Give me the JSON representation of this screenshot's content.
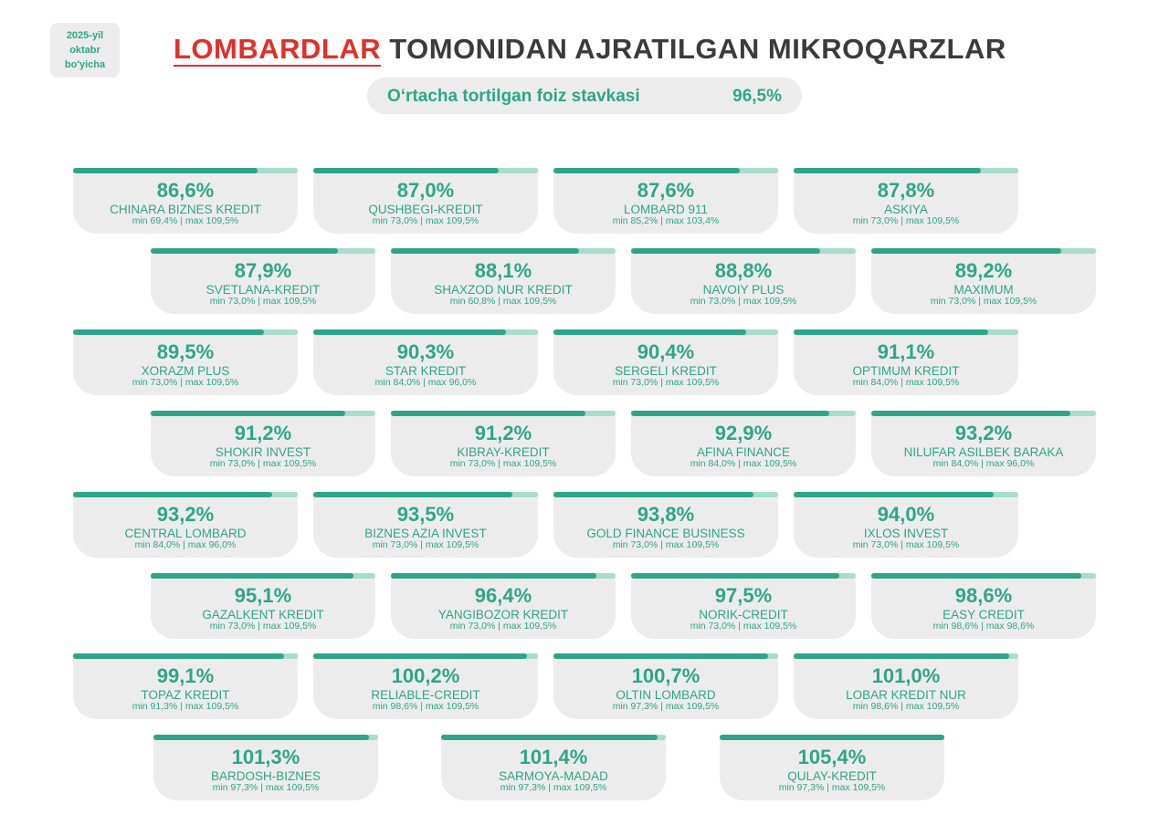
{
  "badge": {
    "line1": "2025-yil",
    "line2": "oktabr",
    "line3": "bo'yicha"
  },
  "title": {
    "highlight": "LOMBARDLAR",
    "rest": " TOMONIDAN AJRATILGAN MIKROQARZLAR"
  },
  "average": {
    "label": "O‘rtacha tortilgan foiz stavkasi",
    "value": "96,5%"
  },
  "colors": {
    "accent": "#2ea58a",
    "track": "#a8dccd",
    "title_highlight": "#e0302a",
    "card_bg": "#ececec"
  },
  "chart_data": {
    "type": "bar",
    "fill_scale_max": 105.4,
    "entries": [
      {
        "name": "CHINARA BIZNES KREDIT",
        "value": 86.6,
        "value_label": "86,6%",
        "range": "min 69,4% | max 109,5%"
      },
      {
        "name": "QUSHBEGI-KREDIT",
        "value": 87.0,
        "value_label": "87,0%",
        "range": "min 73,0% | max 109,5%"
      },
      {
        "name": "LOMBARD 911",
        "value": 87.6,
        "value_label": "87,6%",
        "range": "min 85,2% | max 103,4%"
      },
      {
        "name": "ASKIYA",
        "value": 87.8,
        "value_label": "87,8%",
        "range": "min 73,0% | max 109,5%"
      },
      {
        "name": "SVETLANA-KREDIT",
        "value": 87.9,
        "value_label": "87,9%",
        "range": "min 73,0% | max 109,5%"
      },
      {
        "name": "SHAXZOD NUR KREDIT",
        "value": 88.1,
        "value_label": "88,1%",
        "range": "min 60,8% | max 109,5%"
      },
      {
        "name": "NAVOIY  PLUS",
        "value": 88.8,
        "value_label": "88,8%",
        "range": "min 73,0% | max 109,5%"
      },
      {
        "name": "MAXIMUM",
        "value": 89.2,
        "value_label": "89,2%",
        "range": "min 73,0% | max 109,5%"
      },
      {
        "name": "XORAZM  PLUS",
        "value": 89.5,
        "value_label": "89,5%",
        "range": "min 73,0% | max 109,5%"
      },
      {
        "name": "STAR KREDIT",
        "value": 90.3,
        "value_label": "90,3%",
        "range": "min 84,0% | max 96,0%"
      },
      {
        "name": "SERGELI KREDIT",
        "value": 90.4,
        "value_label": "90,4%",
        "range": "min 73,0% | max 109,5%"
      },
      {
        "name": "OPTIMUM KREDIT",
        "value": 91.1,
        "value_label": "91,1%",
        "range": "min 84,0% | max 109,5%"
      },
      {
        "name": "SHOKIR INVEST",
        "value": 91.2,
        "value_label": "91,2%",
        "range": "min 73,0% | max 109,5%"
      },
      {
        "name": "KIBRAY-KREDIT",
        "value": 91.2,
        "value_label": "91,2%",
        "range": "min 73,0% | max 109,5%"
      },
      {
        "name": "AFINA FINANCE",
        "value": 92.9,
        "value_label": "92,9%",
        "range": "min 84,0% | max 109,5%"
      },
      {
        "name": "NILUFAR ASILBEK BARAKA",
        "value": 93.2,
        "value_label": "93,2%",
        "range": "min 84,0% | max 96,0%"
      },
      {
        "name": "CENTRAL LOMBARD",
        "value": 93.2,
        "value_label": "93,2%",
        "range": "min 84,0% | max 96,0%"
      },
      {
        "name": "BIZNES AZIA INVEST",
        "value": 93.5,
        "value_label": "93,5%",
        "range": "min 73,0% | max 109,5%"
      },
      {
        "name": "GOLD FINANCE BUSINESS",
        "value": 93.8,
        "value_label": "93,8%",
        "range": "min 73,0% | max 109,5%"
      },
      {
        "name": "IXLOS INVEST",
        "value": 94.0,
        "value_label": "94,0%",
        "range": "min 73,0% | max 109,5%"
      },
      {
        "name": "GAZALKENT KREDIT",
        "value": 95.1,
        "value_label": "95,1%",
        "range": "min 73,0% | max 109,5%"
      },
      {
        "name": "YANGIBOZOR KREDIT",
        "value": 96.4,
        "value_label": "96,4%",
        "range": "min 73,0% | max 109,5%"
      },
      {
        "name": "NORIK-CREDIT",
        "value": 97.5,
        "value_label": "97,5%",
        "range": "min 73,0% | max 109,5%"
      },
      {
        "name": "EASY CREDIT",
        "value": 98.6,
        "value_label": "98,6%",
        "range": "min 98,6% | max 98,6%"
      },
      {
        "name": "TOPAZ KREDIT",
        "value": 99.1,
        "value_label": "99,1%",
        "range": "min 91,3% | max 109,5%"
      },
      {
        "name": "RELIABLE-CREDIT",
        "value": 100.2,
        "value_label": "100,2%",
        "range": "min 98,6% | max 109,5%"
      },
      {
        "name": "OLTIN LOMBARD",
        "value": 100.7,
        "value_label": "100,7%",
        "range": "min 97,3% | max 109,5%"
      },
      {
        "name": "LOBAR KREDIT NUR",
        "value": 101.0,
        "value_label": "101,0%",
        "range": "min 98,6% | max 109,5%"
      },
      {
        "name": "BARDOSH-BIZNES",
        "value": 101.3,
        "value_label": "101,3%",
        "range": "min 97,3% | max 109,5%"
      },
      {
        "name": "SARMOYA-MADAD",
        "value": 101.4,
        "value_label": "101,4%",
        "range": "min 97,3% | max 109,5%"
      },
      {
        "name": "QULAY-KREDIT",
        "value": 105.4,
        "value_label": "105,4%",
        "range": "min 97,3% | max 109,5%"
      }
    ]
  }
}
